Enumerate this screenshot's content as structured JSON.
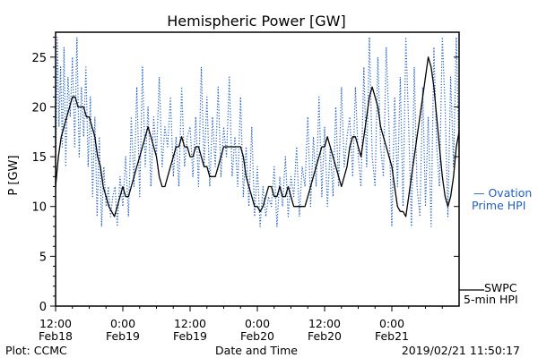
{
  "chart_data": {
    "type": "line",
    "title": "Hemispheric Power [GW]",
    "ylabel": "P [GW]",
    "xlabel": "Date and Time",
    "ylim": [
      0,
      27.5
    ],
    "yticks": [
      0,
      5,
      10,
      15,
      20,
      25
    ],
    "xlim": [
      0,
      72
    ],
    "x_unit": "hours since 2019/02/18 12:00 UT",
    "xticks": [
      {
        "x": 0,
        "time": "12:00",
        "date": "Feb18"
      },
      {
        "x": 12,
        "time": "0:00",
        "date": "Feb19"
      },
      {
        "x": 24,
        "time": "12:00",
        "date": "Feb19"
      },
      {
        "x": 36,
        "time": "0:00",
        "date": "Feb20"
      },
      {
        "x": 48,
        "time": "12:00",
        "date": "Feb20"
      },
      {
        "x": 60,
        "time": "0:00",
        "date": "Feb21"
      }
    ],
    "series": [
      {
        "name": "Ovation Prime HPI",
        "style": "dotted",
        "color": "#1f5fc4",
        "x": [
          0,
          0.3,
          0.6,
          0.9,
          1.2,
          1.5,
          1.8,
          2.2,
          2.6,
          3.0,
          3.4,
          3.8,
          4.2,
          4.6,
          5.0,
          5.4,
          5.8,
          6.2,
          6.6,
          7.0,
          7.4,
          7.8,
          8.2,
          8.6,
          9.0,
          9.4,
          9.8,
          10.2,
          10.6,
          11.0,
          11.5,
          12.0,
          12.5,
          13.0,
          13.5,
          14.0,
          14.5,
          15.0,
          15.5,
          16.0,
          16.5,
          17.0,
          17.5,
          18.0,
          18.5,
          19.0,
          19.5,
          20.0,
          20.5,
          21.0,
          21.5,
          22.0,
          22.5,
          23.0,
          23.5,
          24.0,
          24.5,
          25.0,
          25.5,
          26.0,
          26.5,
          27.0,
          27.5,
          28.0,
          28.5,
          29.0,
          29.5,
          30.0,
          30.5,
          31.0,
          31.5,
          32.0,
          32.5,
          33.0,
          33.5,
          34.0,
          34.5,
          35.0,
          35.5,
          36.0,
          36.5,
          37.0,
          37.5,
          38.0,
          38.5,
          39.0,
          39.5,
          40.0,
          40.5,
          41.0,
          41.5,
          42.0,
          42.5,
          43.0,
          43.5,
          44.0,
          44.5,
          45.0,
          45.5,
          46.0,
          46.5,
          47.0,
          47.5,
          48.0,
          48.5,
          49.0,
          49.5,
          50.0,
          50.5,
          51.0,
          51.5,
          52.0,
          52.5,
          53.0,
          53.5,
          54.0,
          54.5,
          55.0,
          55.5,
          56.0,
          56.5,
          57.0,
          57.5,
          58.0,
          58.5,
          59.0,
          59.5,
          60.0,
          60.5,
          61.0,
          61.5,
          62.0,
          62.5,
          63.0,
          63.5,
          64.0,
          64.5,
          65.0,
          65.5,
          66.0,
          66.5,
          67.0,
          67.5,
          68.0,
          68.5,
          69.0,
          69.5,
          70.0,
          70.5,
          71.0,
          71.5,
          72.0
        ],
        "y": [
          12,
          27,
          18,
          24,
          16,
          26,
          14,
          23,
          19,
          25,
          16,
          27,
          15,
          22,
          17,
          24,
          14,
          21,
          11,
          19,
          9,
          17,
          8,
          14,
          10,
          12,
          9,
          11,
          12,
          8,
          13,
          10,
          15,
          9,
          19,
          12,
          22,
          11,
          24,
          14,
          20,
          12,
          19,
          15,
          23,
          14,
          18,
          16,
          21,
          13,
          17,
          12,
          22,
          14,
          17,
          18,
          13,
          19,
          12,
          24,
          14,
          21,
          12,
          19,
          14,
          22,
          13,
          18,
          15,
          23,
          13,
          17,
          12,
          21,
          11,
          16,
          10,
          18,
          9,
          14,
          8,
          12,
          9,
          11,
          10,
          14,
          8,
          13,
          10,
          15,
          9,
          13,
          11,
          16,
          9,
          14,
          12,
          19,
          10,
          17,
          12,
          21,
          11,
          18,
          10,
          16,
          11,
          20,
          12,
          22,
          14,
          17,
          19,
          13,
          22,
          15,
          12,
          24,
          14,
          27,
          15,
          12,
          25,
          16,
          13,
          26,
          18,
          8,
          21,
          12,
          23,
          10,
          27,
          18,
          8,
          24,
          12,
          9,
          22,
          10,
          19,
          8,
          26,
          16,
          12,
          27,
          20,
          9,
          23,
          14,
          27,
          15
        ]
      },
      {
        "name": "SWPC 5-min HPI",
        "style": "solid",
        "color": "#000000",
        "x": [
          0,
          0.5,
          1.0,
          1.5,
          2.0,
          2.5,
          3.0,
          3.5,
          4.0,
          4.5,
          5.0,
          5.5,
          6.0,
          6.5,
          7.0,
          7.5,
          8.0,
          8.5,
          9.0,
          9.5,
          10.0,
          10.5,
          11.0,
          11.5,
          12.0,
          12.5,
          13.0,
          13.5,
          14.0,
          14.5,
          15.0,
          15.5,
          16.0,
          16.5,
          17.0,
          17.5,
          18.0,
          18.5,
          19.0,
          19.5,
          20.0,
          20.5,
          21.0,
          21.5,
          22.0,
          22.5,
          23.0,
          23.5,
          24.0,
          24.5,
          25.0,
          25.5,
          26.0,
          26.5,
          27.0,
          27.5,
          28.0,
          28.5,
          29.0,
          29.5,
          30.0,
          30.5,
          31.0,
          31.5,
          32.0,
          32.5,
          33.0,
          33.5,
          34.0,
          34.5,
          35.0,
          35.5,
          36.0,
          36.5,
          37.0,
          37.5,
          38.0,
          38.5,
          39.0,
          39.5,
          40.0,
          40.5,
          41.0,
          41.5,
          42.0,
          42.5,
          43.0,
          43.5,
          44.0,
          44.5,
          45.0,
          45.5,
          46.0,
          46.5,
          47.0,
          47.5,
          48.0,
          48.5,
          49.0,
          49.5,
          50.0,
          50.5,
          51.0,
          51.5,
          52.0,
          52.5,
          53.0,
          53.5,
          54.0,
          54.5,
          55.0,
          55.5,
          56.0,
          56.5,
          57.0,
          57.5,
          58.0,
          58.5,
          59.0,
          59.5,
          60.0,
          60.5,
          61.0,
          61.5,
          62.0,
          62.5,
          63.0,
          63.5,
          64.0,
          64.5,
          65.0,
          65.5,
          66.0,
          66.5,
          67.0,
          67.5,
          68.0,
          68.5,
          69.0,
          69.5,
          70.0,
          70.5,
          71.0,
          71.5,
          72.0
        ],
        "y": [
          12,
          15,
          17,
          18,
          19,
          20,
          21,
          21,
          20,
          20,
          20,
          19,
          19,
          18,
          17,
          15,
          14,
          12,
          11,
          10,
          9.5,
          9,
          10,
          11,
          12,
          11,
          11,
          12,
          13,
          14,
          15,
          16,
          17,
          18,
          17,
          16,
          15,
          13,
          12,
          12,
          13,
          14,
          15,
          16,
          16,
          17,
          16,
          16,
          15,
          15,
          16,
          16,
          15,
          14,
          14,
          13,
          13,
          13,
          14,
          15,
          16,
          16,
          16,
          16,
          16,
          16,
          16,
          15,
          13,
          12,
          11,
          10,
          10,
          9.5,
          10,
          11,
          12,
          12,
          11,
          11,
          12,
          11,
          11,
          12,
          11,
          10,
          10,
          10,
          10,
          10,
          11,
          12,
          13,
          14,
          15,
          16,
          16,
          17,
          16,
          15,
          14,
          13,
          12,
          13,
          14,
          16,
          17,
          17,
          16,
          15,
          17,
          19,
          21,
          22,
          21,
          20,
          18,
          17,
          16,
          15,
          14,
          12,
          10,
          9.5,
          9.5,
          9,
          11,
          13,
          15,
          17,
          19,
          21,
          23,
          25,
          24,
          22,
          19,
          16,
          13,
          11,
          10,
          11,
          13,
          16,
          17.5
        ]
      }
    ],
    "legend": {
      "position": "right",
      "ovation_line1": "— Ovation",
      "ovation_line2": "Prime HPI",
      "swpc_line1": "SWPC",
      "swpc_line2": "5-min HPI"
    },
    "footer": {
      "left": "Plot: CCMC",
      "center": "Date and Time",
      "right": "2019/02/21 11:50:17"
    }
  }
}
